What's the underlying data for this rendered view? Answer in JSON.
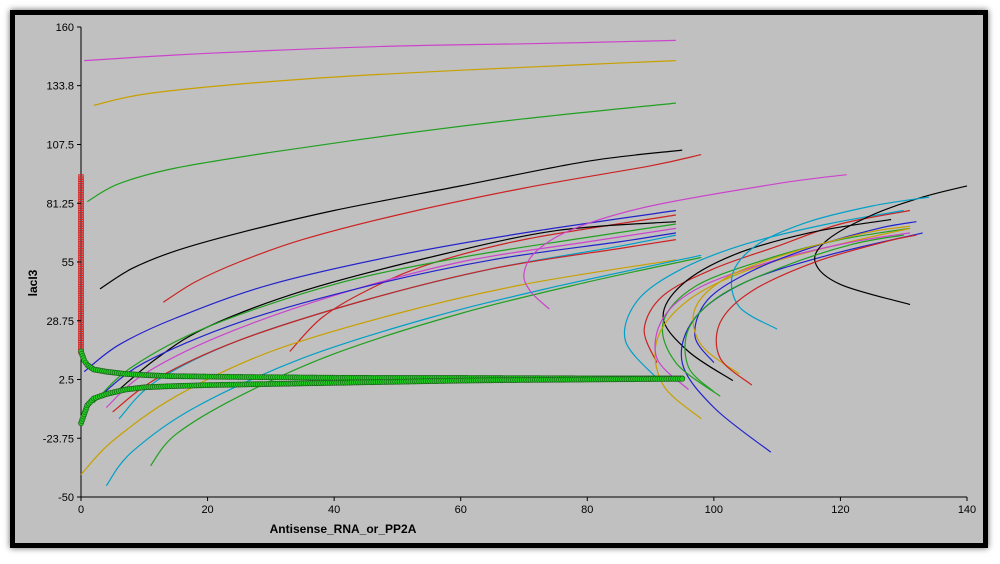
{
  "chart_data": {
    "type": "line",
    "xlabel": "Antisense_RNA_or_PP2A",
    "ylabel": "lacI3",
    "xlim": [
      0,
      140
    ],
    "ylim": [
      -50,
      160
    ],
    "xticks": [
      "0",
      "20",
      "40",
      "60",
      "80",
      "100",
      "120",
      "140"
    ],
    "xtick_values": [
      0,
      20,
      40,
      60,
      80,
      100,
      120,
      140
    ],
    "yticks": [
      "160",
      "133.8",
      "107.5",
      "81.25",
      "55",
      "28.75",
      "2.5",
      "-23.75",
      "-50"
    ],
    "ytick_values": [
      160,
      133.8,
      107.5,
      81.25,
      55,
      28.75,
      2.5,
      -23.75,
      -50
    ],
    "grid": false,
    "legend": "none",
    "background_color": "#c0c0c0",
    "series": [
      {
        "color": "#cc44cc",
        "points": [
          [
            0.5,
            145
          ],
          [
            15,
            147.5
          ],
          [
            30,
            149.5
          ],
          [
            50,
            151.5
          ],
          [
            70,
            152.5
          ],
          [
            94,
            154
          ]
        ]
      },
      {
        "color": "#c8a000",
        "points": [
          [
            2,
            125
          ],
          [
            10,
            130
          ],
          [
            25,
            134.5
          ],
          [
            45,
            138.5
          ],
          [
            70,
            142
          ],
          [
            94,
            145
          ]
        ]
      },
      {
        "color": "#20a020",
        "points": [
          [
            1,
            82
          ],
          [
            6,
            90
          ],
          [
            15,
            97
          ],
          [
            30,
            104
          ],
          [
            50,
            112
          ],
          [
            70,
            119
          ],
          [
            94,
            126
          ]
        ]
      },
      {
        "color": "#000000",
        "points": [
          [
            3,
            43
          ],
          [
            8,
            52
          ],
          [
            15,
            60
          ],
          [
            25,
            68
          ],
          [
            40,
            78
          ],
          [
            60,
            89
          ],
          [
            80,
            100
          ],
          [
            95,
            105
          ]
        ]
      },
      {
        "color": "#cc2222",
        "points": [
          [
            13,
            37
          ],
          [
            18,
            46
          ],
          [
            25,
            55
          ],
          [
            35,
            65
          ],
          [
            50,
            76
          ],
          [
            70,
            88
          ],
          [
            90,
            98
          ],
          [
            98,
            103
          ]
        ]
      },
      {
        "color": "#2222cc",
        "points": [
          [
            0.5,
            6
          ],
          [
            6,
            18
          ],
          [
            15,
            30
          ],
          [
            30,
            45
          ],
          [
            50,
            58
          ],
          [
            70,
            68
          ],
          [
            94,
            78
          ]
        ]
      },
      {
        "color": "#cc2222",
        "points": [
          [
            33,
            15
          ],
          [
            38,
            30
          ],
          [
            45,
            42
          ],
          [
            55,
            54
          ],
          [
            70,
            65
          ],
          [
            94,
            76
          ]
        ]
      },
      {
        "color": "#000000",
        "points": [
          [
            6,
            -2
          ],
          [
            12,
            12
          ],
          [
            20,
            26
          ],
          [
            35,
            42
          ],
          [
            55,
            57
          ],
          [
            75,
            69
          ],
          [
            94,
            73
          ]
        ]
      },
      {
        "color": "#20a020",
        "points": [
          [
            2,
            -8
          ],
          [
            8,
            8
          ],
          [
            20,
            26
          ],
          [
            40,
            45
          ],
          [
            60,
            57
          ],
          [
            80,
            66
          ],
          [
            94,
            72
          ]
        ]
      },
      {
        "color": "#cc44cc",
        "points": [
          [
            4,
            -10
          ],
          [
            10,
            5
          ],
          [
            22,
            22
          ],
          [
            40,
            40
          ],
          [
            60,
            55
          ],
          [
            80,
            64
          ],
          [
            94,
            70
          ]
        ]
      },
      {
        "color": "#00a0c8",
        "points": [
          [
            6,
            -15
          ],
          [
            12,
            2
          ],
          [
            25,
            20
          ],
          [
            45,
            38
          ],
          [
            65,
            52
          ],
          [
            85,
            62
          ],
          [
            94,
            67
          ]
        ]
      },
      {
        "color": "#2222cc",
        "points": [
          [
            3,
            -5
          ],
          [
            10,
            10
          ],
          [
            25,
            28
          ],
          [
            45,
            44
          ],
          [
            65,
            56
          ],
          [
            85,
            64
          ],
          [
            94,
            68
          ]
        ]
      },
      {
        "color": "#cc2222",
        "points": [
          [
            5,
            -12
          ],
          [
            12,
            3
          ],
          [
            25,
            20
          ],
          [
            45,
            38
          ],
          [
            65,
            52
          ],
          [
            85,
            61
          ],
          [
            94,
            65
          ]
        ]
      },
      {
        "color": "#c8a000",
        "points": [
          [
            0,
            -40
          ],
          [
            5,
            -25
          ],
          [
            15,
            -5
          ],
          [
            30,
            15
          ],
          [
            50,
            32
          ],
          [
            70,
            45
          ],
          [
            94,
            56
          ]
        ]
      },
      {
        "color": "#00a0c8",
        "points": [
          [
            4,
            -45
          ],
          [
            8,
            -30
          ],
          [
            18,
            -10
          ],
          [
            35,
            12
          ],
          [
            55,
            30
          ],
          [
            75,
            44
          ],
          [
            98,
            58
          ]
        ]
      },
      {
        "color": "#20a020",
        "points": [
          [
            11,
            -36
          ],
          [
            15,
            -22
          ],
          [
            25,
            -5
          ],
          [
            40,
            14
          ],
          [
            60,
            32
          ],
          [
            80,
            46
          ],
          [
            98,
            57
          ]
        ]
      },
      {
        "color": "#cc44cc",
        "points": [
          [
            74,
            34
          ],
          [
            71,
            42
          ],
          [
            70,
            50
          ],
          [
            72,
            60
          ],
          [
            78,
            70
          ],
          [
            90,
            80
          ],
          [
            110,
            90
          ],
          [
            121,
            94
          ]
        ]
      },
      {
        "color": "#cc2222",
        "points": [
          [
            91,
            10
          ],
          [
            89,
            25
          ],
          [
            92,
            40
          ],
          [
            100,
            52
          ],
          [
            110,
            62
          ],
          [
            120,
            72
          ],
          [
            131,
            78
          ]
        ]
      },
      {
        "color": "#000000",
        "points": [
          [
            103,
            2
          ],
          [
            96,
            15
          ],
          [
            92,
            30
          ],
          [
            95,
            45
          ],
          [
            103,
            58
          ],
          [
            115,
            68
          ],
          [
            128,
            74
          ]
        ]
      },
      {
        "color": "#00a0c8",
        "points": [
          [
            91,
            3
          ],
          [
            86,
            20
          ],
          [
            88,
            38
          ],
          [
            95,
            52
          ],
          [
            105,
            63
          ],
          [
            118,
            72
          ],
          [
            130,
            78
          ]
        ]
      },
      {
        "color": "#2222cc",
        "points": [
          [
            109,
            -30
          ],
          [
            100,
            -10
          ],
          [
            95,
            10
          ],
          [
            97,
            30
          ],
          [
            105,
            46
          ],
          [
            118,
            58
          ],
          [
            133,
            68
          ]
        ]
      },
      {
        "color": "#20a020",
        "points": [
          [
            101,
            -5
          ],
          [
            94,
            10
          ],
          [
            92,
            28
          ],
          [
            97,
            44
          ],
          [
            108,
            56
          ],
          [
            120,
            65
          ],
          [
            131,
            70
          ]
        ]
      },
      {
        "color": "#c8a000",
        "points": [
          [
            98,
            -15
          ],
          [
            92,
            0
          ],
          [
            91,
            20
          ],
          [
            96,
            38
          ],
          [
            106,
            52
          ],
          [
            120,
            63
          ],
          [
            131,
            70
          ]
        ]
      },
      {
        "color": "#cc44cc",
        "points": [
          [
            96,
            -2
          ],
          [
            91,
            12
          ],
          [
            92,
            30
          ],
          [
            98,
            44
          ],
          [
            110,
            56
          ],
          [
            122,
            64
          ],
          [
            131,
            68
          ]
        ]
      },
      {
        "color": "#000000",
        "points": [
          [
            131,
            36
          ],
          [
            120,
            45
          ],
          [
            116,
            55
          ],
          [
            118,
            65
          ],
          [
            125,
            76
          ],
          [
            133,
            84
          ],
          [
            140,
            89
          ]
        ]
      },
      {
        "color": "#00a0c8",
        "points": [
          [
            110,
            25
          ],
          [
            104,
            35
          ],
          [
            103,
            50
          ],
          [
            107,
            63
          ],
          [
            115,
            73
          ],
          [
            125,
            80
          ],
          [
            134,
            84
          ]
        ]
      },
      {
        "color": "#2222cc",
        "points": [
          [
            100,
            10
          ],
          [
            97,
            22
          ],
          [
            99,
            38
          ],
          [
            106,
            51
          ],
          [
            116,
            62
          ],
          [
            126,
            70
          ],
          [
            132,
            73
          ]
        ]
      },
      {
        "color": "#c8a000",
        "points": [
          [
            104,
            5
          ],
          [
            98,
            18
          ],
          [
            97,
            34
          ],
          [
            102,
            48
          ],
          [
            112,
            59
          ],
          [
            124,
            68
          ],
          [
            131,
            71
          ]
        ]
      },
      {
        "color": "#cc2222",
        "points": [
          [
            106,
            0
          ],
          [
            101,
            12
          ],
          [
            101,
            28
          ],
          [
            106,
            42
          ],
          [
            116,
            55
          ],
          [
            127,
            64
          ],
          [
            132,
            67
          ]
        ]
      },
      {
        "color": "#20a020",
        "points": [
          [
            100,
            -3
          ],
          [
            96,
            8
          ],
          [
            96,
            25
          ],
          [
            101,
            40
          ],
          [
            111,
            53
          ],
          [
            122,
            63
          ],
          [
            130,
            67
          ]
        ]
      }
    ],
    "scatter_series": [
      {
        "color": "#dd2222",
        "marker": "square",
        "points": [
          [
            0,
            93
          ],
          [
            0,
            88
          ],
          [
            0,
            82
          ],
          [
            0,
            76
          ],
          [
            0,
            70
          ],
          [
            0,
            64
          ],
          [
            0,
            58
          ],
          [
            0,
            52
          ],
          [
            0,
            46
          ],
          [
            0,
            40
          ],
          [
            0,
            34
          ],
          [
            0,
            28
          ],
          [
            0,
            23
          ],
          [
            0,
            19
          ],
          [
            0,
            15
          ]
        ]
      },
      {
        "color": "#22cc22",
        "marker": "circle",
        "points": [
          [
            0,
            15
          ],
          [
            0.5,
            11
          ],
          [
            1,
            9
          ],
          [
            2,
            7
          ],
          [
            4,
            6
          ],
          [
            7,
            5
          ],
          [
            10,
            4.5
          ],
          [
            14,
            4
          ],
          [
            20,
            3.8
          ],
          [
            30,
            3.5
          ],
          [
            40,
            3.3
          ],
          [
            50,
            3.2
          ],
          [
            60,
            3.2
          ],
          [
            70,
            3.1
          ],
          [
            80,
            3
          ],
          [
            90,
            3
          ],
          [
            95,
            3
          ]
        ]
      },
      {
        "color": "#22cc22",
        "marker": "circle",
        "points": [
          [
            0,
            -17
          ],
          [
            0.5,
            -13
          ],
          [
            1,
            -9
          ],
          [
            2,
            -6
          ],
          [
            4,
            -4
          ],
          [
            7,
            -2
          ],
          [
            10,
            -1
          ],
          [
            14,
            -0.5
          ],
          [
            20,
            0
          ],
          [
            30,
            0.5
          ],
          [
            40,
            1
          ],
          [
            50,
            1.5
          ],
          [
            60,
            2
          ],
          [
            70,
            2.3
          ],
          [
            80,
            2.5
          ],
          [
            90,
            2.7
          ],
          [
            95,
            2.8
          ]
        ]
      }
    ]
  }
}
